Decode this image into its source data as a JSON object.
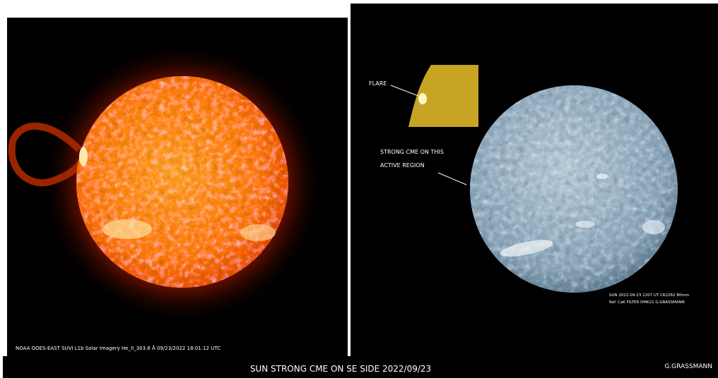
{
  "left_panel": {
    "caption": "NOAA GOES-EAST SUVI L1b Solar Imagery He_II_303.8 Å 09/23/2022 18:01:12 UTC"
  },
  "right_panel": {
    "inset_label": "FLARE",
    "annotation": [
      "STRONG CME ON THIS",
      "ACTIVE REGION"
    ],
    "credit": [
      "SUN  2022-09-23  1207 UT CR2262  80mm",
      "Ref. CaK FILTER  DMK21  G.GRASSMANN"
    ]
  },
  "footer": {
    "title": "SUN  STRONG CME ON SE SIDE  2022/09/23",
    "author": "G.GRASSMANN"
  }
}
